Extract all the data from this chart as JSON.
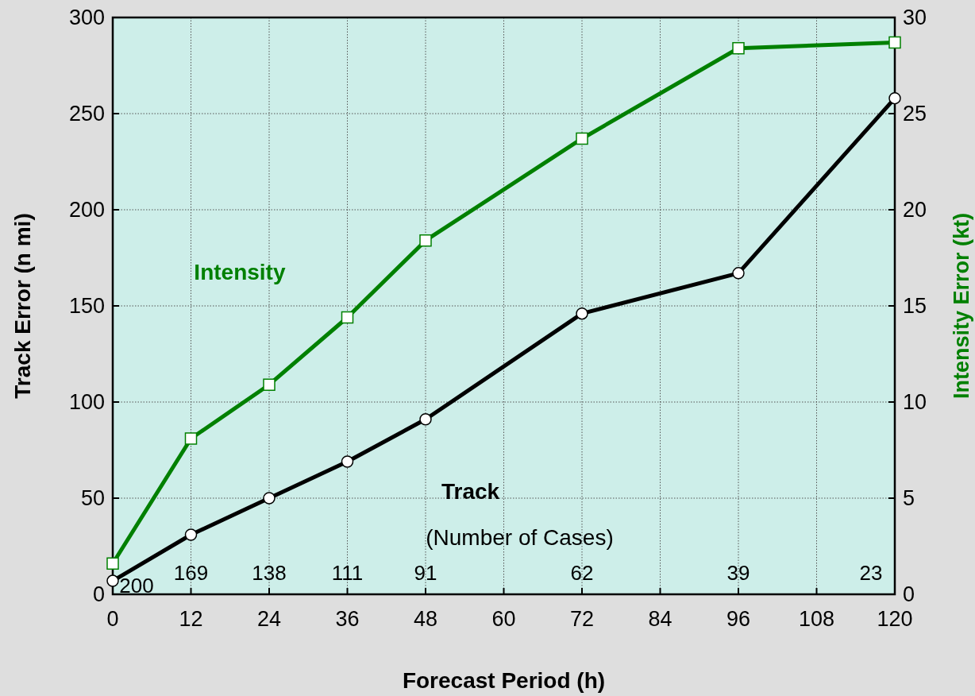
{
  "chart_data": {
    "type": "line",
    "xlabel": "Forecast Period (h)",
    "ylabel": "Track Error (n mi)",
    "y2label": "Intensity Error (kt)",
    "x": [
      0,
      12,
      24,
      36,
      48,
      72,
      96,
      120
    ],
    "xlim": [
      0,
      120
    ],
    "xticks": [
      0,
      12,
      24,
      36,
      48,
      60,
      72,
      84,
      96,
      108,
      120
    ],
    "ylim": [
      0,
      300
    ],
    "yticks": [
      0,
      50,
      100,
      150,
      200,
      250,
      300
    ],
    "y2lim": [
      0,
      30
    ],
    "y2ticks": [
      0,
      5,
      10,
      15,
      20,
      25,
      30
    ],
    "grid": true,
    "line_style": "solid",
    "series": [
      {
        "name": "Intensity",
        "color": "#008000",
        "axis": "y2",
        "marker": "square",
        "values": [
          1.6,
          8.1,
          10.9,
          14.4,
          18.4,
          23.7,
          28.4,
          28.7
        ]
      },
      {
        "name": "Track",
        "color": "#000000",
        "axis": "y",
        "marker": "circle",
        "values": [
          7,
          31,
          50,
          69,
          91,
          146,
          167,
          258
        ]
      }
    ],
    "annotations": [
      "(Number of Cases)",
      "200",
      "169",
      "138",
      "111",
      "91",
      "62",
      "39",
      "23"
    ]
  }
}
